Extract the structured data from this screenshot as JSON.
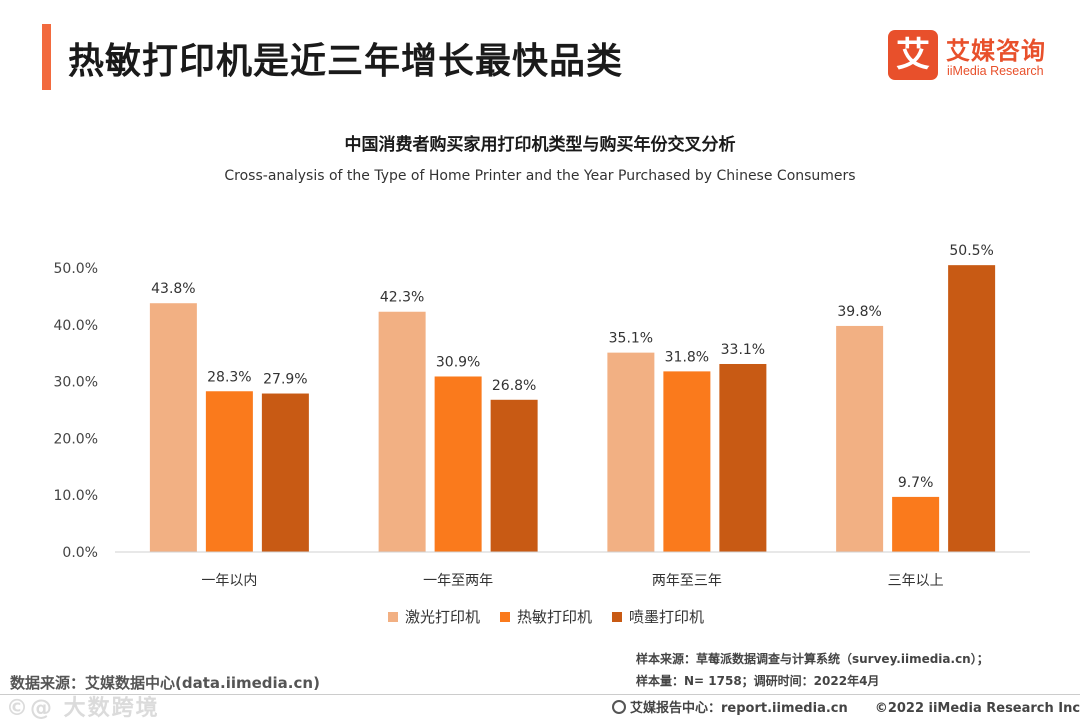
{
  "page": {
    "title": "热敏打印机是近三年增长最快品类",
    "accent_color": "#f26a3e"
  },
  "logo": {
    "icon_char": "艾",
    "name_cn": "艾媒咨询",
    "name_en": "iiMedia Research",
    "color": "#e8502b"
  },
  "chart_data": {
    "type": "bar",
    "title": "中国消费者购买家用打印机类型与购买年份交叉分析",
    "subtitle": "Cross-analysis of the Type of Home Printer and the Year Purchased by Chinese Consumers",
    "categories": [
      "一年以内",
      "一年至两年",
      "两年至三年",
      "三年以上"
    ],
    "series": [
      {
        "name": "激光打印机",
        "color": "#f2b083",
        "values": [
          43.8,
          42.3,
          35.1,
          39.8
        ]
      },
      {
        "name": "热敏打印机",
        "color": "#fa7a1c",
        "values": [
          28.3,
          30.9,
          31.8,
          9.7
        ]
      },
      {
        "name": "喷墨打印机",
        "color": "#c85a14",
        "values": [
          27.9,
          26.8,
          33.1,
          50.5
        ]
      }
    ],
    "ylim": [
      0,
      50
    ],
    "yticks": [
      "0.0%",
      "10.0%",
      "20.0%",
      "30.0%",
      "40.0%",
      "50.0%"
    ],
    "value_labels": [
      [
        "43.8%",
        "42.3%",
        "35.1%",
        "39.8%"
      ],
      [
        "28.3%",
        "30.9%",
        "31.8%",
        "9.7%"
      ],
      [
        "27.9%",
        "26.8%",
        "33.1%",
        "50.5%"
      ]
    ],
    "xlabel": "",
    "ylabel": "",
    "grid": false,
    "legend_position": "bottom"
  },
  "source": "数据来源：艾媒数据中心(data.iimedia.cn)",
  "notes": {
    "sample_source": "样本来源：草莓派数据调查与计算系统（survey.iimedia.cn）；",
    "sample_size": "样本量：N= 1758；调研时间：2022年4月"
  },
  "footer": {
    "report_center": "艾媒报告中心：report.iimedia.cn",
    "copyright": "©2022  iiMedia Research  Inc"
  },
  "watermark": "©@ 大数跨境"
}
